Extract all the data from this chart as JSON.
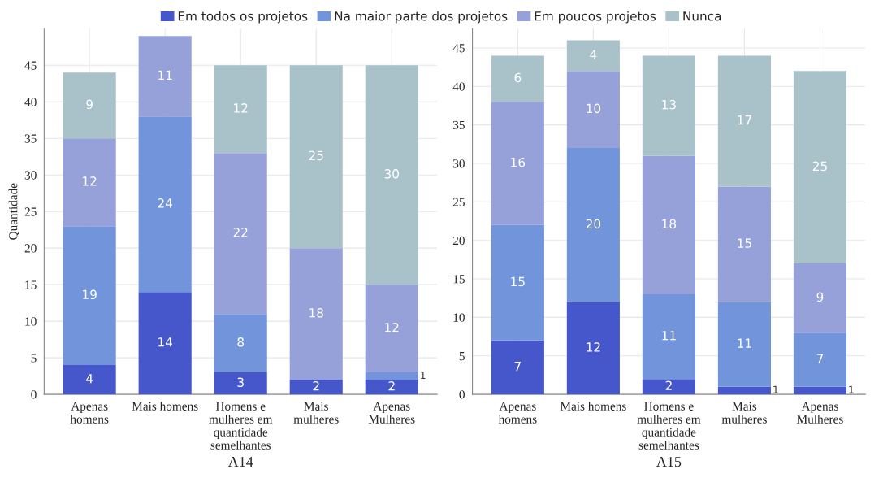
{
  "chart_data": [
    {
      "type": "bar",
      "stacked": true,
      "xlabel": "A14",
      "ylabel": "Quantidade",
      "categories": [
        "Apenas\nhomens",
        "Mais homens",
        "Homens e\nmulheres em\nquantidade\nsemelhantes",
        "Mais\nmulheres",
        "Apenas\nMulheres"
      ],
      "ylim": [
        0,
        50
      ],
      "yticks": [
        0,
        5,
        10,
        15,
        20,
        25,
        30,
        35,
        40,
        45
      ],
      "grid": true,
      "legend": "top",
      "series": [
        {
          "name": "Em todos os projetos",
          "color": "#4657cc",
          "values": [
            4,
            14,
            3,
            2,
            2
          ],
          "value_labels": [
            "4",
            "14",
            "3",
            "2",
            "2"
          ]
        },
        {
          "name": "Na maior parte dos projetos",
          "color": "#7194da",
          "values": [
            19,
            24,
            8,
            0,
            1
          ],
          "value_labels": [
            "19",
            "24",
            "8",
            null,
            "1"
          ]
        },
        {
          "name": "Em poucos projetos",
          "color": "#97a1d9",
          "values": [
            12,
            11,
            22,
            18,
            12
          ],
          "value_labels": [
            "12",
            "11",
            "22",
            "18",
            "12"
          ]
        },
        {
          "name": "Nunca",
          "color": "#a9c2c9",
          "values": [
            9,
            0,
            12,
            25,
            30
          ],
          "value_labels": [
            "9",
            null,
            "12",
            "25",
            "30"
          ]
        }
      ]
    },
    {
      "type": "bar",
      "stacked": true,
      "xlabel": "A15",
      "categories": [
        "Apenas\nhomens",
        "Mais homens",
        "Homens e\nmulheres em\nquantidade\nsemelhantes",
        "Mais\nmulheres",
        "Apenas\nMulheres"
      ],
      "ylim": [
        0,
        47.5
      ],
      "yticks": [
        0,
        5,
        10,
        15,
        20,
        25,
        30,
        35,
        40,
        45
      ],
      "grid": true,
      "legend": "top",
      "series": [
        {
          "name": "Em todos os projetos",
          "color": "#4657cc",
          "values": [
            7,
            12,
            2,
            1,
            1
          ],
          "value_labels": [
            "7",
            "12",
            "2",
            "1",
            "1"
          ]
        },
        {
          "name": "Na maior parte dos projetos",
          "color": "#7194da",
          "values": [
            15,
            20,
            11,
            11,
            7
          ],
          "value_labels": [
            "15",
            "20",
            "11",
            "11",
            "7"
          ]
        },
        {
          "name": "Em poucos projetos",
          "color": "#97a1d9",
          "values": [
            16,
            10,
            18,
            15,
            9
          ],
          "value_labels": [
            "16",
            "10",
            "18",
            "15",
            "9"
          ]
        },
        {
          "name": "Nunca",
          "color": "#a9c2c9",
          "values": [
            6,
            4,
            13,
            17,
            25
          ],
          "value_labels": [
            "6",
            "4",
            "13",
            "17",
            "25"
          ]
        }
      ]
    }
  ]
}
